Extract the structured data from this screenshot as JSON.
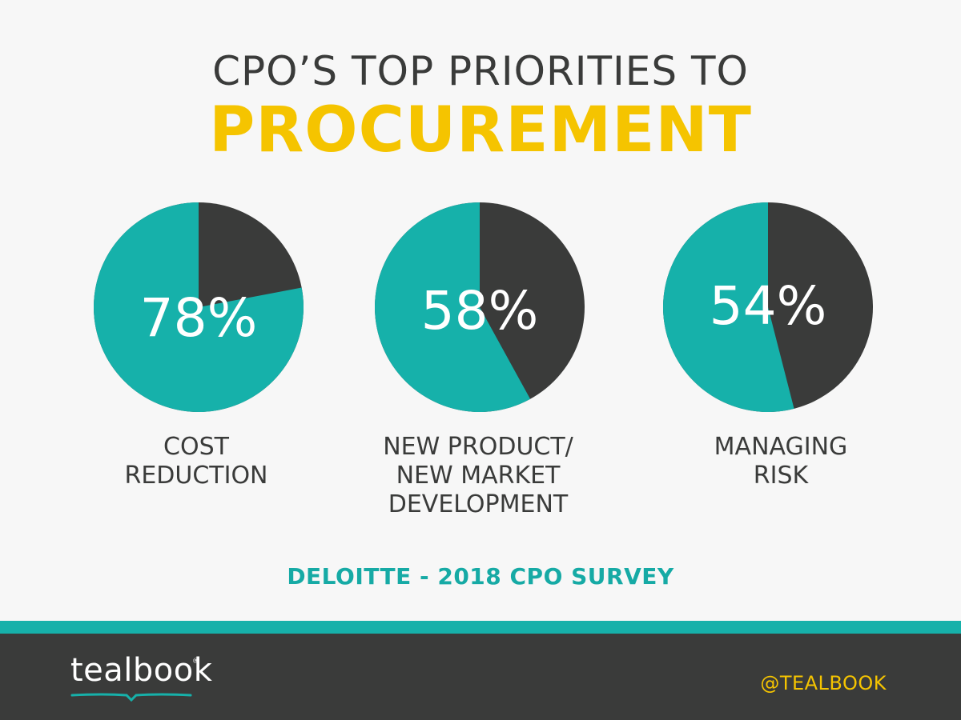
{
  "title": {
    "line1": "CPO’S TOP PRIORITIES TO",
    "line2": "PROCUREMENT"
  },
  "colors": {
    "teal": "#16b1aa",
    "dark": "#3a3b3a",
    "yellow": "#f5c400",
    "white": "#ffffff"
  },
  "chart_data": {
    "type": "pie",
    "charts": [
      {
        "value": 78,
        "label_text": "78%",
        "category_lines": [
          "COST",
          "REDUCTION"
        ]
      },
      {
        "value": 58,
        "label_text": "58%",
        "category_lines": [
          "NEW PRODUCT/",
          "NEW MARKET",
          "DEVELOPMENT"
        ]
      },
      {
        "value": 54,
        "label_text": "54%",
        "category_lines": [
          "MANAGING",
          "RISK"
        ]
      }
    ]
  },
  "source": "DELOITTE - 2018 CPO SURVEY",
  "footer": {
    "logo_text": "tealbook",
    "logo_mark": "®",
    "handle": "@TEALBOOK"
  }
}
